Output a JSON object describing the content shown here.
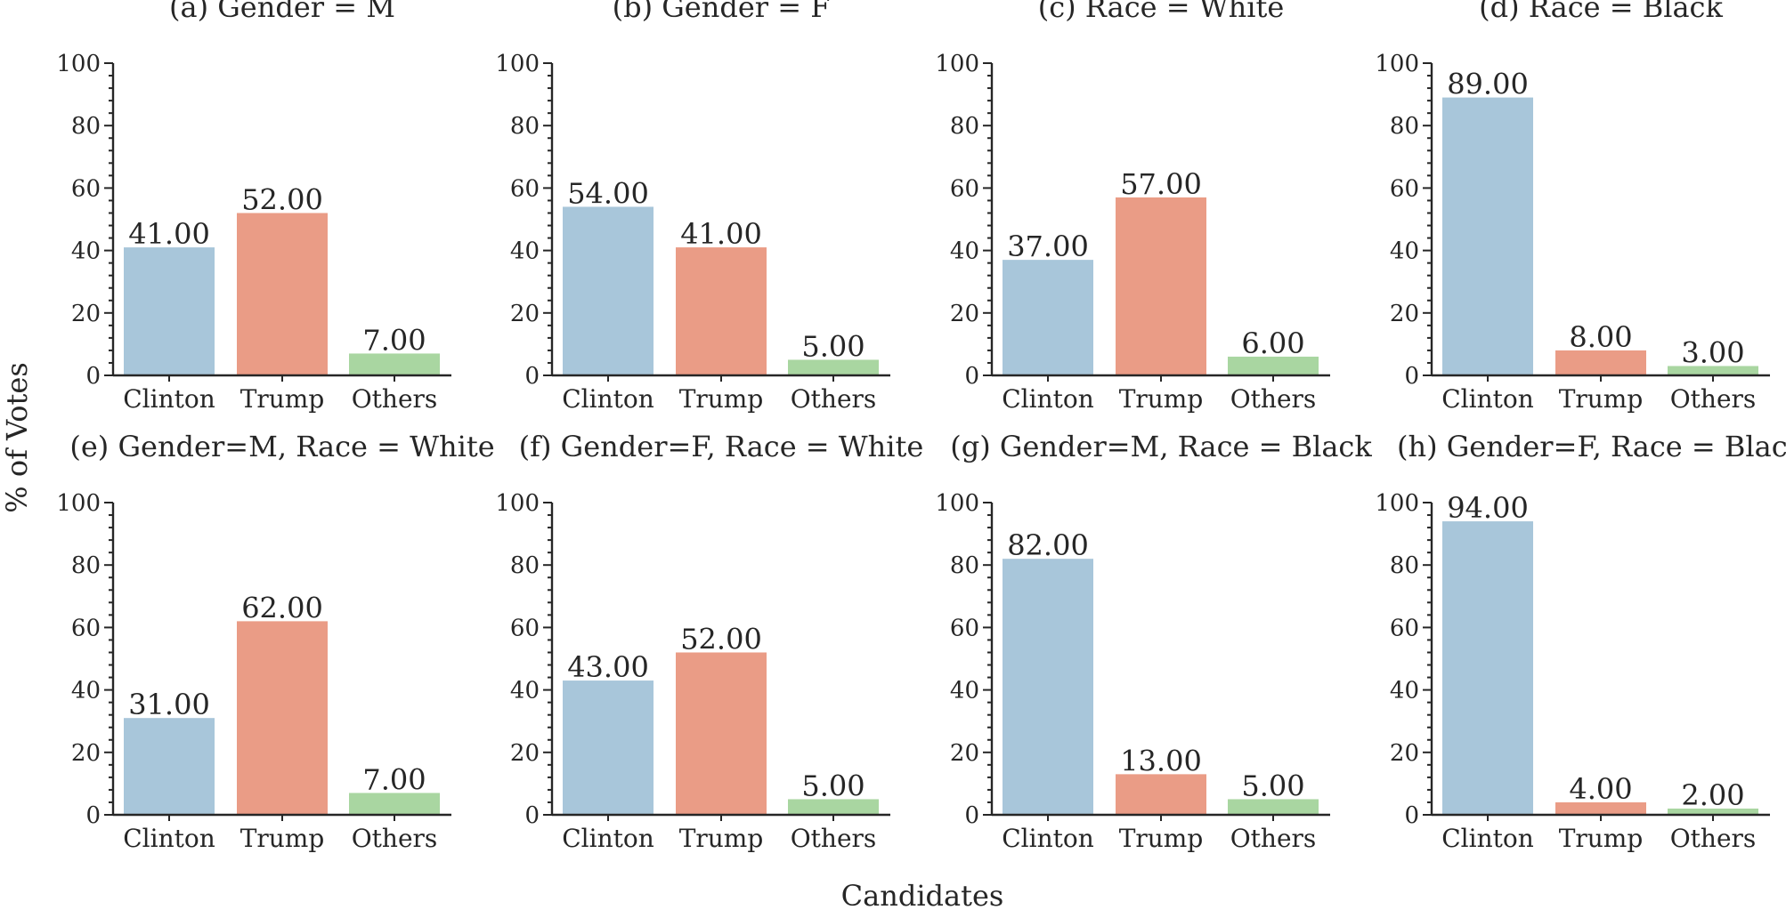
{
  "figure": {
    "xlabel": "Candidates",
    "ylabel": "% of Votes"
  },
  "colors": {
    "Clinton": "#a8c6da",
    "Trump": "#ea9c86",
    "Others": "#a9d6a1"
  },
  "chart_data": [
    {
      "type": "bar",
      "title": "(a) Gender = M",
      "categories": [
        "Clinton",
        "Trump",
        "Others"
      ],
      "values": [
        41,
        52,
        7
      ],
      "value_labels": [
        "41.00",
        "52.00",
        "7.00"
      ],
      "ylim": [
        0,
        100
      ],
      "yticks": [
        "0",
        "20",
        "40",
        "60",
        "80",
        "100"
      ]
    },
    {
      "type": "bar",
      "title": "(b) Gender = F",
      "categories": [
        "Clinton",
        "Trump",
        "Others"
      ],
      "values": [
        54,
        41,
        5
      ],
      "value_labels": [
        "54.00",
        "41.00",
        "5.00"
      ],
      "ylim": [
        0,
        100
      ],
      "yticks": [
        "0",
        "20",
        "40",
        "60",
        "80",
        "100"
      ]
    },
    {
      "type": "bar",
      "title": "(c) Race = White",
      "categories": [
        "Clinton",
        "Trump",
        "Others"
      ],
      "values": [
        37,
        57,
        6
      ],
      "value_labels": [
        "37.00",
        "57.00",
        "6.00"
      ],
      "ylim": [
        0,
        100
      ],
      "yticks": [
        "0",
        "20",
        "40",
        "60",
        "80",
        "100"
      ]
    },
    {
      "type": "bar",
      "title": "(d) Race = Black",
      "categories": [
        "Clinton",
        "Trump",
        "Others"
      ],
      "values": [
        89,
        8,
        3
      ],
      "value_labels": [
        "89.00",
        "8.00",
        "3.00"
      ],
      "ylim": [
        0,
        100
      ],
      "yticks": [
        "0",
        "20",
        "40",
        "60",
        "80",
        "100"
      ]
    },
    {
      "type": "bar",
      "title": "(e) Gender=M, Race = White",
      "categories": [
        "Clinton",
        "Trump",
        "Others"
      ],
      "values": [
        31,
        62,
        7
      ],
      "value_labels": [
        "31.00",
        "62.00",
        "7.00"
      ],
      "ylim": [
        0,
        100
      ],
      "yticks": [
        "0",
        "20",
        "40",
        "60",
        "80",
        "100"
      ]
    },
    {
      "type": "bar",
      "title": "(f) Gender=F, Race = White",
      "categories": [
        "Clinton",
        "Trump",
        "Others"
      ],
      "values": [
        43,
        52,
        5
      ],
      "value_labels": [
        "43.00",
        "52.00",
        "5.00"
      ],
      "ylim": [
        0,
        100
      ],
      "yticks": [
        "0",
        "20",
        "40",
        "60",
        "80",
        "100"
      ]
    },
    {
      "type": "bar",
      "title": "(g) Gender=M, Race = Black",
      "categories": [
        "Clinton",
        "Trump",
        "Others"
      ],
      "values": [
        82,
        13,
        5
      ],
      "value_labels": [
        "82.00",
        "13.00",
        "5.00"
      ],
      "ylim": [
        0,
        100
      ],
      "yticks": [
        "0",
        "20",
        "40",
        "60",
        "80",
        "100"
      ]
    },
    {
      "type": "bar",
      "title": "(h) Gender=F, Race = Black",
      "categories": [
        "Clinton",
        "Trump",
        "Others"
      ],
      "values": [
        94,
        4,
        2
      ],
      "value_labels": [
        "94.00",
        "4.00",
        "2.00"
      ],
      "ylim": [
        0,
        100
      ],
      "yticks": [
        "0",
        "20",
        "40",
        "60",
        "80",
        "100"
      ]
    }
  ]
}
